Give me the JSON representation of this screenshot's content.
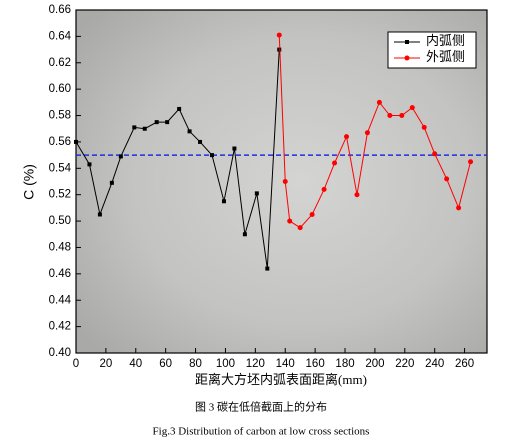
{
  "chart_data": {
    "type": "line",
    "ylabel": "C (%)",
    "xlabel": "距离大方坯内弧表面距离(mm)",
    "caption_cn": "图 3  碳在低倍截面上的分布",
    "caption_en": "Fig.3 Distribution of carbon at low cross sections",
    "xlim": [
      0,
      275
    ],
    "ylim": [
      0.4,
      0.66
    ],
    "xticks": [
      0,
      20,
      40,
      60,
      80,
      100,
      120,
      140,
      160,
      180,
      200,
      220,
      240,
      260
    ],
    "yticks": [
      {
        "value": 0.4,
        "label": "0.40"
      },
      0.42,
      0.44,
      0.46,
      0.48,
      {
        "value": 0.5,
        "label": "0.50"
      },
      0.52,
      0.54,
      0.56,
      0.58,
      {
        "value": 0.6,
        "label": "0.60"
      },
      0.62,
      0.64,
      0.66
    ],
    "reference_line": {
      "value": 0.55,
      "color": "#1f2fe0"
    },
    "legend": "upper right",
    "series": [
      {
        "name": "内弧侧",
        "color": "#000000",
        "marker": "square",
        "x": [
          0,
          9,
          16,
          24,
          30,
          39,
          46,
          54,
          61,
          69,
          76,
          83,
          91,
          99,
          106,
          113,
          121,
          128,
          136
        ],
        "values": [
          0.56,
          0.543,
          0.505,
          0.529,
          0.549,
          0.571,
          0.57,
          0.575,
          0.575,
          0.585,
          0.568,
          0.56,
          0.55,
          0.515,
          0.555,
          0.49,
          0.521,
          0.464,
          0.63
        ]
      },
      {
        "name": "外弧侧",
        "color": "#ff0000",
        "marker": "circle",
        "x": [
          136,
          140,
          143,
          150,
          158,
          166,
          173,
          181,
          188,
          195,
          203,
          210,
          218,
          225,
          233,
          240,
          248,
          256,
          264
        ],
        "values": [
          0.641,
          0.53,
          0.5,
          0.495,
          0.505,
          0.524,
          0.544,
          0.564,
          0.52,
          0.567,
          0.59,
          0.58,
          0.58,
          0.586,
          0.571,
          0.551,
          0.532,
          0.51,
          0.545
        ]
      }
    ]
  }
}
